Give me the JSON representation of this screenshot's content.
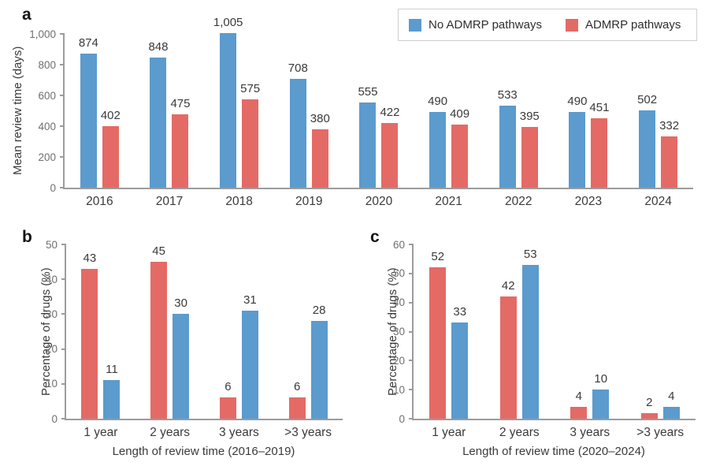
{
  "figure": {
    "background": "#ffffff",
    "legend": {
      "items": [
        {
          "label": "No ADMRP pathways",
          "color": "#5b9bcd"
        },
        {
          "label": "ADMRP pathways",
          "color": "#e46a66"
        }
      ]
    },
    "colors": {
      "no_admrp_blue": "#5b9bcd",
      "admrp_red": "#e46a66",
      "axis_line": "#9c9c9c",
      "tick_text": "#6f6f6f",
      "label_text": "#3a3a3a"
    }
  },
  "chart_data": [
    {
      "type": "bar",
      "panel_label": "a",
      "title": "",
      "ylabel": "Mean review time (days)",
      "xlabel": "",
      "ylim": [
        0,
        1000
      ],
      "yticks": [
        "0",
        "200",
        "400",
        "600",
        "800",
        "1,000"
      ],
      "grid": false,
      "legend_position": "top-right",
      "categories": [
        "2016",
        "2017",
        "2018",
        "2019",
        "2020",
        "2021",
        "2022",
        "2023",
        "2024"
      ],
      "series": [
        {
          "name": "No ADMRP pathways",
          "color": "#5b9bcd",
          "values": [
            874,
            848,
            1005,
            708,
            555,
            490,
            533,
            490,
            502
          ],
          "labels": [
            "874",
            "848",
            "1,005",
            "708",
            "555",
            "490",
            "533",
            "490",
            "502"
          ]
        },
        {
          "name": "ADMRP pathways",
          "color": "#e46a66",
          "values": [
            402,
            475,
            575,
            380,
            422,
            409,
            395,
            451,
            332
          ],
          "labels": [
            "402",
            "475",
            "575",
            "380",
            "422",
            "409",
            "395",
            "451",
            "332"
          ]
        }
      ]
    },
    {
      "type": "bar",
      "panel_label": "b",
      "title": "",
      "ylabel": "Percentage of drugs (%)",
      "xlabel": "Length of review time (2016–2019)",
      "ylim": [
        0,
        50
      ],
      "yticks": [
        "0",
        "10",
        "20",
        "30",
        "40",
        "50"
      ],
      "grid": false,
      "categories": [
        "1 year",
        "2 years",
        "3 years",
        ">3 years"
      ],
      "series": [
        {
          "name": "ADMRP pathways",
          "color": "#e46a66",
          "values": [
            43,
            45,
            6,
            6
          ],
          "labels": [
            "43",
            "45",
            "6",
            "6"
          ]
        },
        {
          "name": "No ADMRP pathways",
          "color": "#5b9bcd",
          "values": [
            11,
            30,
            31,
            28
          ],
          "labels": [
            "11",
            "30",
            "31",
            "28"
          ]
        }
      ]
    },
    {
      "type": "bar",
      "panel_label": "c",
      "title": "",
      "ylabel": "Percentage of drugs (%)",
      "xlabel": "Length of review time (2020–2024)",
      "ylim": [
        0,
        60
      ],
      "yticks": [
        "0",
        "10",
        "20",
        "30",
        "40",
        "50",
        "60"
      ],
      "grid": false,
      "categories": [
        "1 year",
        "2 years",
        "3 years",
        ">3 years"
      ],
      "series": [
        {
          "name": "ADMRP pathways",
          "color": "#e46a66",
          "values": [
            52,
            42,
            4,
            2
          ],
          "labels": [
            "52",
            "42",
            "4",
            "2"
          ]
        },
        {
          "name": "No ADMRP pathways",
          "color": "#5b9bcd",
          "values": [
            33,
            53,
            10,
            4
          ],
          "labels": [
            "33",
            "53",
            "10",
            "4"
          ]
        }
      ]
    }
  ]
}
